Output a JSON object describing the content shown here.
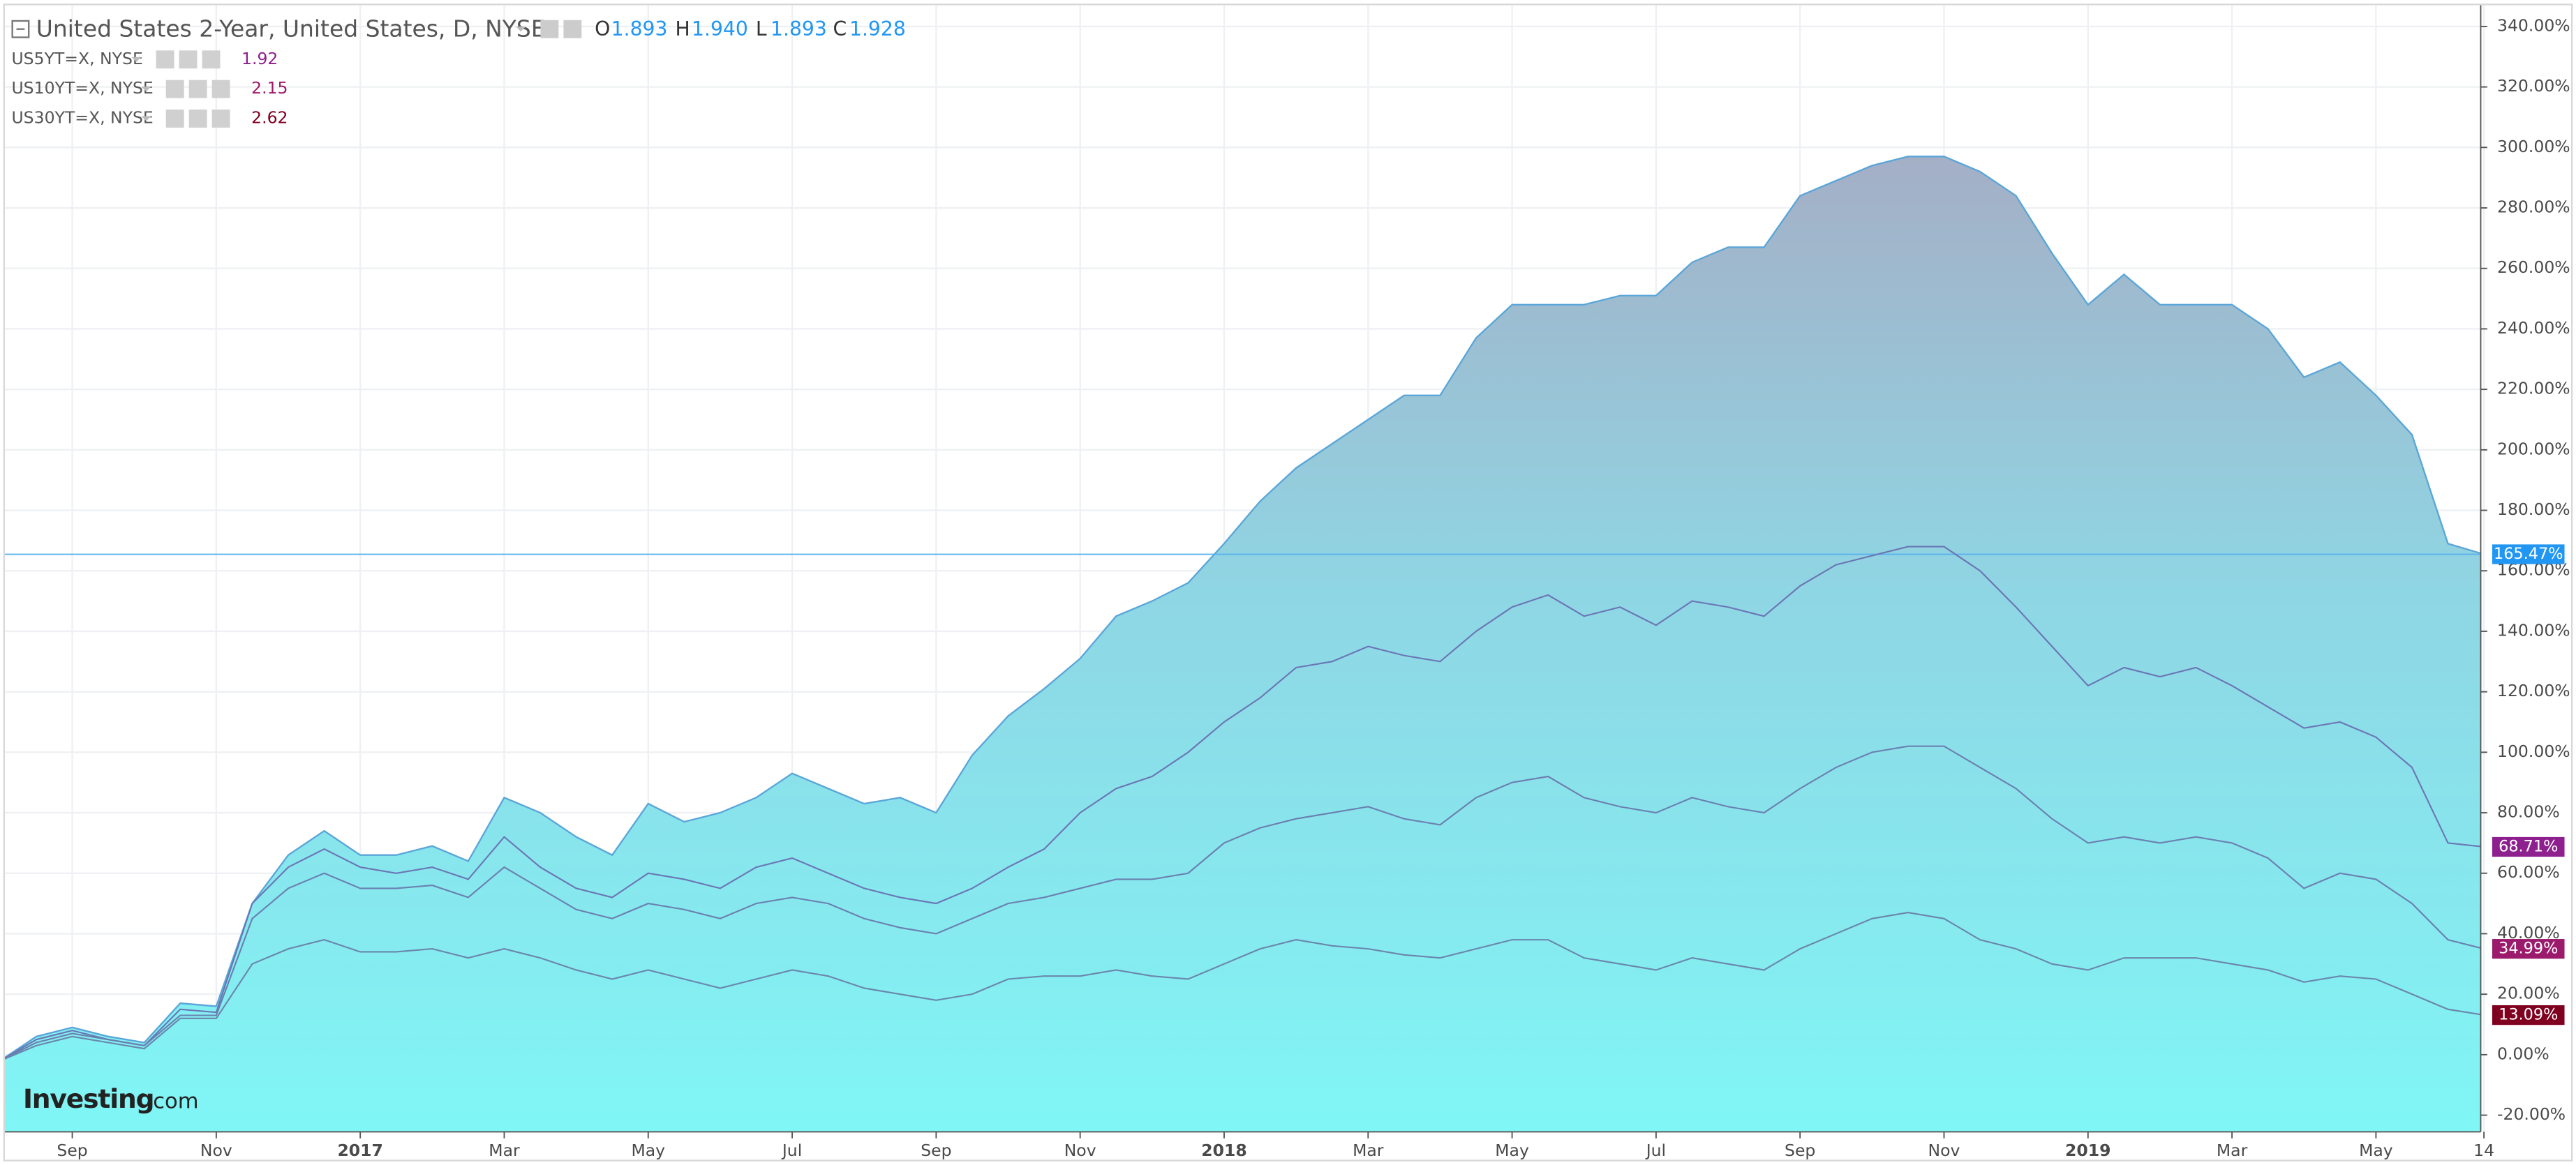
{
  "chart_data": {
    "type": "area",
    "title": "United States 2-Year, United States, D, NYSE",
    "ohlc": [
      {
        "label": "O",
        "value": "1.893"
      },
      {
        "label": "H",
        "value": "1.940"
      },
      {
        "label": "L",
        "value": "1.893"
      },
      {
        "label": "C",
        "value": "1.928"
      }
    ],
    "logo": {
      "brand": "Investing",
      "suffix": ".com"
    },
    "categories": [
      null,
      null,
      "Sep",
      null,
      null,
      null,
      "Nov",
      null,
      null,
      null,
      "2017",
      null,
      null,
      null,
      "Mar",
      null,
      null,
      null,
      "May",
      null,
      null,
      null,
      "Jul",
      null,
      null,
      null,
      "Sep",
      null,
      null,
      null,
      "Nov",
      null,
      null,
      null,
      "2018",
      null,
      null,
      null,
      "Mar",
      null,
      null,
      null,
      "May",
      null,
      null,
      null,
      "Jul",
      null,
      null,
      null,
      "Sep",
      null,
      null,
      null,
      "Nov",
      null,
      null,
      null,
      "2019",
      null,
      null,
      null,
      "Mar",
      null,
      null,
      null,
      "May",
      null,
      null,
      "14"
    ],
    "ylim": [
      -25.5,
      347
    ],
    "yticks": [
      {
        "value": -20,
        "label": "-20.00%"
      },
      {
        "value": 0,
        "label": "0.00%"
      },
      {
        "value": 20,
        "label": "20.00%"
      },
      {
        "value": 40,
        "label": "40.00%"
      },
      {
        "value": 60,
        "label": "60.00%"
      },
      {
        "value": 80,
        "label": "80.00%"
      },
      {
        "value": 100,
        "label": "100.00%"
      },
      {
        "value": 120,
        "label": "120.00%"
      },
      {
        "value": 140,
        "label": "140.00%"
      },
      {
        "value": 160,
        "label": "160.00%"
      },
      {
        "value": 180,
        "label": "180.00%"
      },
      {
        "value": 200,
        "label": "200.00%"
      },
      {
        "value": 220,
        "label": "220.00%"
      },
      {
        "value": 240,
        "label": "240.00%"
      },
      {
        "value": 260,
        "label": "260.00%"
      },
      {
        "value": 280,
        "label": "280.00%"
      },
      {
        "value": 300,
        "label": "300.00%"
      },
      {
        "value": 320,
        "label": "320.00%"
      },
      {
        "value": 340,
        "label": "340.00%"
      }
    ],
    "grid": true,
    "series": [
      {
        "color": "#2196f3",
        "line_color": "#5aa6d8",
        "values": [
          -2,
          6,
          9,
          6,
          4,
          17,
          16,
          50,
          66,
          74,
          66,
          66,
          69,
          64,
          85,
          80,
          72,
          66,
          83,
          77,
          80,
          85,
          93,
          88,
          83,
          85,
          80,
          99,
          112,
          121,
          131,
          145,
          150,
          156,
          169,
          183,
          194,
          202,
          210,
          218,
          218,
          237,
          248,
          248,
          248,
          251,
          251,
          262,
          267,
          267,
          284,
          289,
          294,
          297,
          297,
          292,
          284,
          265,
          248,
          258,
          248,
          248,
          248,
          240,
          224,
          229,
          218,
          205,
          169,
          165.47
        ],
        "value_labels": [
          null,
          null,
          null,
          null,
          null,
          null,
          null,
          null,
          null,
          null,
          null,
          null,
          null,
          null,
          null,
          null,
          null,
          null,
          null,
          null,
          null,
          null,
          null,
          null,
          null,
          null,
          null,
          null,
          null,
          null,
          null,
          null,
          null,
          null,
          null,
          null,
          null,
          null,
          null,
          null,
          null,
          null,
          null,
          null,
          null,
          null,
          null,
          null,
          null,
          null,
          null,
          null,
          null,
          null,
          null,
          null,
          null,
          null,
          null,
          null,
          null,
          null,
          null,
          null,
          null,
          null,
          null,
          null,
          null,
          "165.47%"
        ]
      },
      {
        "name": "US5YT=X, NYSE",
        "quote": "1.92",
        "color": "#8e1f8e",
        "line_color": "#6a76b4",
        "values": [
          -2,
          5,
          8,
          5,
          3,
          15,
          14,
          50,
          62,
          68,
          62,
          60,
          62,
          58,
          72,
          62,
          55,
          52,
          60,
          58,
          55,
          62,
          65,
          60,
          55,
          52,
          50,
          55,
          62,
          68,
          80,
          88,
          92,
          100,
          110,
          118,
          128,
          130,
          135,
          132,
          130,
          140,
          148,
          152,
          145,
          148,
          142,
          150,
          148,
          145,
          155,
          162,
          165,
          168,
          168,
          160,
          148,
          135,
          122,
          128,
          125,
          128,
          122,
          115,
          108,
          110,
          105,
          95,
          70,
          68.71
        ],
        "value_labels": [
          null,
          null,
          null,
          null,
          null,
          null,
          null,
          null,
          null,
          null,
          null,
          null,
          null,
          null,
          null,
          null,
          null,
          null,
          null,
          null,
          null,
          null,
          null,
          null,
          null,
          null,
          null,
          null,
          null,
          null,
          null,
          null,
          null,
          null,
          null,
          null,
          null,
          null,
          null,
          null,
          null,
          null,
          null,
          null,
          null,
          null,
          null,
          null,
          null,
          null,
          null,
          null,
          null,
          null,
          null,
          null,
          null,
          null,
          null,
          null,
          null,
          null,
          null,
          null,
          null,
          null,
          null,
          null,
          null,
          "68.71%"
        ]
      },
      {
        "name": "US10YT=X, NYSE",
        "quote": "2.15",
        "color": "#9b1a6b",
        "line_color": "#6a80b0",
        "values": [
          -2,
          4,
          7,
          5,
          3,
          13,
          13,
          45,
          55,
          60,
          55,
          55,
          56,
          52,
          62,
          55,
          48,
          45,
          50,
          48,
          45,
          50,
          52,
          50,
          45,
          42,
          40,
          45,
          50,
          52,
          55,
          58,
          58,
          60,
          70,
          75,
          78,
          80,
          82,
          78,
          76,
          85,
          90,
          92,
          85,
          82,
          80,
          85,
          82,
          80,
          88,
          95,
          100,
          102,
          102,
          95,
          88,
          78,
          70,
          72,
          70,
          72,
          70,
          65,
          55,
          60,
          58,
          50,
          38,
          34.99
        ],
        "value_labels": [
          null,
          null,
          null,
          null,
          null,
          null,
          null,
          null,
          null,
          null,
          null,
          null,
          null,
          null,
          null,
          null,
          null,
          null,
          null,
          null,
          null,
          null,
          null,
          null,
          null,
          null,
          null,
          null,
          null,
          null,
          null,
          null,
          null,
          null,
          null,
          null,
          null,
          null,
          null,
          null,
          null,
          null,
          null,
          null,
          null,
          null,
          null,
          null,
          null,
          null,
          null,
          null,
          null,
          null,
          null,
          null,
          null,
          null,
          null,
          null,
          null,
          null,
          null,
          null,
          null,
          null,
          null,
          null,
          null,
          "34.99%"
        ]
      },
      {
        "name": "US30YT=X, NYSE",
        "quote": "2.62",
        "color": "#800020",
        "line_color": "#6a86ac",
        "values": [
          -2,
          3,
          6,
          4,
          2,
          12,
          12,
          30,
          35,
          38,
          34,
          34,
          35,
          32,
          35,
          32,
          28,
          25,
          28,
          25,
          22,
          25,
          28,
          26,
          22,
          20,
          18,
          20,
          25,
          26,
          26,
          28,
          26,
          25,
          30,
          35,
          38,
          36,
          35,
          33,
          32,
          35,
          38,
          38,
          32,
          30,
          28,
          32,
          30,
          28,
          35,
          40,
          45,
          47,
          45,
          38,
          35,
          30,
          28,
          32,
          32,
          32,
          30,
          28,
          24,
          26,
          25,
          20,
          15,
          13.09
        ],
        "value_labels": [
          null,
          null,
          null,
          null,
          null,
          null,
          null,
          null,
          null,
          null,
          null,
          null,
          null,
          null,
          null,
          null,
          null,
          null,
          null,
          null,
          null,
          null,
          null,
          null,
          null,
          null,
          null,
          null,
          null,
          null,
          null,
          null,
          null,
          null,
          null,
          null,
          null,
          null,
          null,
          null,
          null,
          null,
          null,
          null,
          null,
          null,
          null,
          null,
          null,
          null,
          null,
          null,
          null,
          null,
          null,
          null,
          null,
          null,
          null,
          null,
          null,
          null,
          null,
          null,
          null,
          null,
          null,
          null,
          null,
          "13.09%"
        ]
      }
    ]
  }
}
